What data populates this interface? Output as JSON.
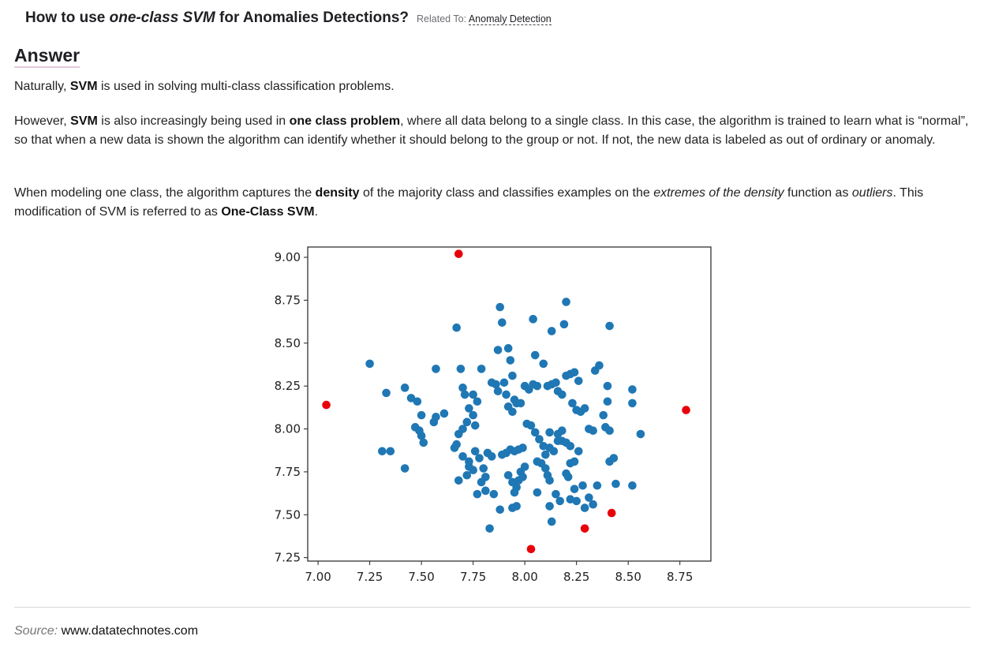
{
  "question": {
    "title_prefix": "How to use ",
    "title_em": "one-class SVM",
    "title_suffix": " for Anomalies Detections?",
    "related_label": "Related To: ",
    "related_link": "Anomaly Detection"
  },
  "answer": {
    "heading": "Answer",
    "p1": [
      {
        "t": "Naturally, ",
        "s": "normal"
      },
      {
        "t": "SVM",
        "s": "bold"
      },
      {
        "t": " is used in solving multi-class classification problems.",
        "s": "normal"
      }
    ],
    "p2": [
      {
        "t": "However, ",
        "s": "normal"
      },
      {
        "t": "SVM",
        "s": "bold"
      },
      {
        "t": " is also increasingly being used in ",
        "s": "normal"
      },
      {
        "t": "one class problem",
        "s": "bold"
      },
      {
        "t": ", where all data belong to a single class. In this case, the algorithm is trained to learn what is “normal”, so that when a new data is shown the algorithm can identify whether it should belong to the group or not. If not, the new data is labeled as out of ordinary or anomaly.",
        "s": "normal"
      }
    ],
    "p3": [
      {
        "t": "When modeling one class, the algorithm captures the ",
        "s": "normal"
      },
      {
        "t": "density",
        "s": "bold"
      },
      {
        "t": " of the majority class and classifies examples on the ",
        "s": "normal"
      },
      {
        "t": "extremes of the density",
        "s": "italic"
      },
      {
        "t": " function as ",
        "s": "normal"
      },
      {
        "t": "outliers",
        "s": "italic"
      },
      {
        "t": ". This modification of SVM is referred to as ",
        "s": "normal"
      },
      {
        "t": "One-Class SVM",
        "s": "bold"
      },
      {
        "t": ".",
        "s": "normal"
      }
    ]
  },
  "source": {
    "label": "Source:",
    "value": "www.datatechnotes.com"
  },
  "chart_data": {
    "type": "scatter",
    "title": "",
    "xlabel": "",
    "ylabel": "",
    "xlim": [
      6.95,
      8.9
    ],
    "ylim": [
      7.23,
      9.06
    ],
    "xticks": [
      7.0,
      7.25,
      7.5,
      7.75,
      8.0,
      8.25,
      8.5,
      8.75
    ],
    "yticks": [
      7.25,
      7.5,
      7.75,
      8.0,
      8.25,
      8.5,
      8.75,
      9.0
    ],
    "xtick_labels": [
      "7.00",
      "7.25",
      "7.50",
      "7.75",
      "8.00",
      "8.25",
      "8.50",
      "8.75"
    ],
    "ytick_labels": [
      "7.25",
      "7.50",
      "7.75",
      "8.00",
      "8.25",
      "8.50",
      "8.75",
      "9.00"
    ],
    "grid": false,
    "series": [
      {
        "color": "#1f77b4",
        "points": [
          [
            7.25,
            8.38
          ],
          [
            7.33,
            8.21
          ],
          [
            7.31,
            7.87
          ],
          [
            7.35,
            7.87
          ],
          [
            7.42,
            8.24
          ],
          [
            7.42,
            7.77
          ],
          [
            7.45,
            8.18
          ],
          [
            7.48,
            8.16
          ],
          [
            7.47,
            8.01
          ],
          [
            7.5,
            8.08
          ],
          [
            7.5,
            7.96
          ],
          [
            7.51,
            7.92
          ],
          [
            7.49,
            7.99
          ],
          [
            7.56,
            8.04
          ],
          [
            7.57,
            8.07
          ],
          [
            7.57,
            8.35
          ],
          [
            7.61,
            8.09
          ],
          [
            7.67,
            8.59
          ],
          [
            7.69,
            8.35
          ],
          [
            7.7,
            8.24
          ],
          [
            7.71,
            8.2
          ],
          [
            7.73,
            8.12
          ],
          [
            7.75,
            8.2
          ],
          [
            7.77,
            8.16
          ],
          [
            7.79,
            8.35
          ],
          [
            7.66,
            7.89
          ],
          [
            7.68,
            7.97
          ],
          [
            7.7,
            8.0
          ],
          [
            7.72,
            8.04
          ],
          [
            7.75,
            8.08
          ],
          [
            7.76,
            8.02
          ],
          [
            7.67,
            7.91
          ],
          [
            7.7,
            7.84
          ],
          [
            7.73,
            7.78
          ],
          [
            7.73,
            7.81
          ],
          [
            7.75,
            7.76
          ],
          [
            7.72,
            7.73
          ],
          [
            7.68,
            7.7
          ],
          [
            7.76,
            7.87
          ],
          [
            7.78,
            7.83
          ],
          [
            7.8,
            7.77
          ],
          [
            7.82,
            7.86
          ],
          [
            7.84,
            7.84
          ],
          [
            7.81,
            7.72
          ],
          [
            7.79,
            7.69
          ],
          [
            7.77,
            7.62
          ],
          [
            7.81,
            7.64
          ],
          [
            7.85,
            7.62
          ],
          [
            7.83,
            7.42
          ],
          [
            7.87,
            8.46
          ],
          [
            7.88,
            8.71
          ],
          [
            7.89,
            8.62
          ],
          [
            7.92,
            8.47
          ],
          [
            7.93,
            8.4
          ],
          [
            7.94,
            8.31
          ],
          [
            7.9,
            8.27
          ],
          [
            7.86,
            8.26
          ],
          [
            7.84,
            8.27
          ],
          [
            7.87,
            8.22
          ],
          [
            7.91,
            8.2
          ],
          [
            7.95,
            8.17
          ],
          [
            7.92,
            8.13
          ],
          [
            7.94,
            8.1
          ],
          [
            7.96,
            8.15
          ],
          [
            7.98,
            8.15
          ],
          [
            8.0,
            8.25
          ],
          [
            8.02,
            8.23
          ],
          [
            8.04,
            8.26
          ],
          [
            8.06,
            8.25
          ],
          [
            8.04,
            8.64
          ],
          [
            8.05,
            8.43
          ],
          [
            8.09,
            8.38
          ],
          [
            8.11,
            8.25
          ],
          [
            8.13,
            8.26
          ],
          [
            8.15,
            8.27
          ],
          [
            8.13,
            8.57
          ],
          [
            8.19,
            8.61
          ],
          [
            8.2,
            8.74
          ],
          [
            8.16,
            8.22
          ],
          [
            8.18,
            8.2
          ],
          [
            8.2,
            8.31
          ],
          [
            8.22,
            8.32
          ],
          [
            8.24,
            8.33
          ],
          [
            8.26,
            8.28
          ],
          [
            8.23,
            8.15
          ],
          [
            8.25,
            8.11
          ],
          [
            8.27,
            8.1
          ],
          [
            8.29,
            8.12
          ],
          [
            8.31,
            8.0
          ],
          [
            8.33,
            7.99
          ],
          [
            8.34,
            8.34
          ],
          [
            8.36,
            8.37
          ],
          [
            8.38,
            8.08
          ],
          [
            8.39,
            8.01
          ],
          [
            8.41,
            7.99
          ],
          [
            8.4,
            8.16
          ],
          [
            8.4,
            8.25
          ],
          [
            8.41,
            8.6
          ],
          [
            8.52,
            8.23
          ],
          [
            8.52,
            8.15
          ],
          [
            8.56,
            7.97
          ],
          [
            8.52,
            7.67
          ],
          [
            8.44,
            7.68
          ],
          [
            8.41,
            7.81
          ],
          [
            8.43,
            7.83
          ],
          [
            8.35,
            7.67
          ],
          [
            8.33,
            7.56
          ],
          [
            8.29,
            7.54
          ],
          [
            8.31,
            7.6
          ],
          [
            8.28,
            7.67
          ],
          [
            8.24,
            7.65
          ],
          [
            8.25,
            7.58
          ],
          [
            8.22,
            7.59
          ],
          [
            8.21,
            7.72
          ],
          [
            8.2,
            7.74
          ],
          [
            8.17,
            7.58
          ],
          [
            8.15,
            7.62
          ],
          [
            8.13,
            7.46
          ],
          [
            8.12,
            7.55
          ],
          [
            8.12,
            7.7
          ],
          [
            8.11,
            7.73
          ],
          [
            8.1,
            7.77
          ],
          [
            8.1,
            7.85
          ],
          [
            8.12,
            7.89
          ],
          [
            8.14,
            7.87
          ],
          [
            8.16,
            7.93
          ],
          [
            8.18,
            7.93
          ],
          [
            8.2,
            7.92
          ],
          [
            8.22,
            7.9
          ],
          [
            8.18,
            7.99
          ],
          [
            8.16,
            7.97
          ],
          [
            8.12,
            7.98
          ],
          [
            8.09,
            7.9
          ],
          [
            8.07,
            7.94
          ],
          [
            8.05,
            7.98
          ],
          [
            8.03,
            8.02
          ],
          [
            8.01,
            8.03
          ],
          [
            7.99,
            7.89
          ],
          [
            7.97,
            7.88
          ],
          [
            7.95,
            7.87
          ],
          [
            7.93,
            7.88
          ],
          [
            7.91,
            7.86
          ],
          [
            7.89,
            7.85
          ],
          [
            7.92,
            7.73
          ],
          [
            7.94,
            7.69
          ],
          [
            7.96,
            7.66
          ],
          [
            7.95,
            7.63
          ],
          [
            7.96,
            7.55
          ],
          [
            7.94,
            7.54
          ],
          [
            7.88,
            7.53
          ],
          [
            7.98,
            7.75
          ],
          [
            8.0,
            7.78
          ],
          [
            7.99,
            7.72
          ],
          [
            7.97,
            7.7
          ],
          [
            8.06,
            7.63
          ],
          [
            8.08,
            7.8
          ],
          [
            8.06,
            7.81
          ],
          [
            8.24,
            7.81
          ],
          [
            8.26,
            7.87
          ],
          [
            8.22,
            7.8
          ]
        ]
      },
      {
        "color": "#e8000b",
        "points": [
          [
            7.68,
            9.02
          ],
          [
            7.04,
            8.14
          ],
          [
            8.78,
            8.11
          ],
          [
            8.42,
            7.51
          ],
          [
            8.29,
            7.42
          ],
          [
            8.03,
            7.3
          ]
        ]
      }
    ]
  }
}
